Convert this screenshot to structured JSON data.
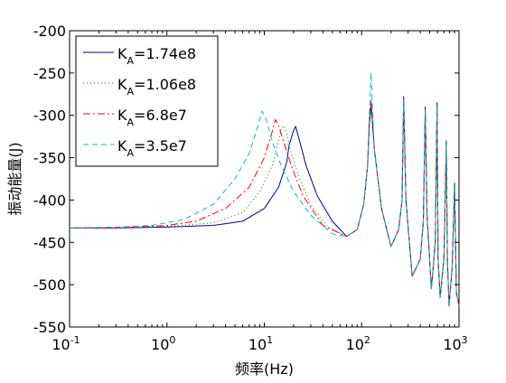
{
  "chart_data": {
    "type": "line",
    "title": "",
    "xlabel": "频率(Hz)",
    "ylabel": "振动能量(J)",
    "xscale": "log",
    "xlim": [
      0.1,
      1000
    ],
    "ylim": [
      -550,
      -200
    ],
    "x_ticks": [
      {
        "value": 0.1,
        "base": "10",
        "exp": "-1"
      },
      {
        "value": 1,
        "base": "10",
        "exp": "0"
      },
      {
        "value": 10,
        "base": "10",
        "exp": "1"
      },
      {
        "value": 100,
        "base": "10",
        "exp": "2"
      },
      {
        "value": 1000,
        "base": "10",
        "exp": "3"
      }
    ],
    "y_ticks": [
      -550,
      -500,
      -450,
      -400,
      -350,
      -300,
      -250,
      -200
    ],
    "grid": false,
    "legend_position": "top-left",
    "series": [
      {
        "name": "K_A=1.74e8",
        "label_main": "K",
        "label_sub": "A",
        "label_value": "=1.74e8",
        "color": "#00008b",
        "dash": "solid",
        "x": [
          0.1,
          0.3,
          1,
          3,
          6,
          10,
          14,
          16,
          17,
          18,
          20,
          21,
          23,
          27,
          35,
          50,
          70,
          90,
          105,
          115,
          120,
          125,
          135,
          160,
          200,
          240,
          260,
          270,
          285,
          330,
          400,
          430,
          450,
          470,
          520,
          570,
          595,
          610,
          640,
          700,
          740,
          760,
          790,
          850,
          900,
          940,
          1000
        ],
        "y": [
          -433,
          -433,
          -432,
          -430,
          -425,
          -410,
          -385,
          -365,
          -355,
          -335,
          -318,
          -313,
          -330,
          -360,
          -395,
          -425,
          -443,
          -435,
          -405,
          -360,
          -310,
          -288,
          -340,
          -410,
          -455,
          -435,
          -400,
          -278,
          -400,
          -490,
          -470,
          -425,
          -290,
          -420,
          -505,
          -450,
          -285,
          -470,
          -515,
          -470,
          -330,
          -470,
          -525,
          -480,
          -380,
          -510,
          -525
        ]
      },
      {
        "name": "K_A=1.06e8",
        "label_main": "K",
        "label_sub": "A",
        "label_value": "=1.06e8",
        "color": "#008000",
        "dash": "1 3",
        "x": [
          0.1,
          0.3,
          1,
          3,
          6,
          9,
          12,
          14,
          15,
          16,
          17,
          19,
          23,
          30,
          45,
          70,
          90,
          105,
          115,
          120,
          125,
          135,
          160,
          200,
          240,
          260,
          270,
          285,
          330,
          400,
          430,
          450,
          470,
          520,
          570,
          595,
          610,
          640,
          700,
          740,
          760,
          790,
          850,
          900,
          940,
          1000
        ],
        "y": [
          -433,
          -433,
          -431,
          -427,
          -415,
          -390,
          -360,
          -330,
          -315,
          -312,
          -322,
          -345,
          -375,
          -405,
          -432,
          -443,
          -435,
          -405,
          -360,
          -300,
          -288,
          -340,
          -410,
          -455,
          -435,
          -400,
          -280,
          -400,
          -490,
          -470,
          -425,
          -292,
          -420,
          -505,
          -450,
          -287,
          -470,
          -515,
          -470,
          -330,
          -470,
          -525,
          -480,
          -380,
          -510,
          -525
        ]
      },
      {
        "name": "K_A=6.8e7",
        "label_main": "K",
        "label_sub": "A",
        "label_value": "=6.8e7",
        "color": "#ff0000",
        "dash": "8 3 2 3",
        "x": [
          0.1,
          0.3,
          1,
          2,
          4,
          7,
          10,
          12,
          13,
          14,
          16,
          19,
          25,
          40,
          70,
          90,
          105,
          115,
          120,
          125,
          135,
          160,
          200,
          240,
          260,
          270,
          285,
          330,
          400,
          430,
          450,
          470,
          520,
          570,
          595,
          610,
          640,
          700,
          740,
          760,
          790,
          850,
          900,
          940,
          1000
        ],
        "y": [
          -433,
          -433,
          -430,
          -425,
          -410,
          -385,
          -350,
          -320,
          -305,
          -312,
          -333,
          -360,
          -395,
          -430,
          -443,
          -435,
          -405,
          -360,
          -300,
          -282,
          -340,
          -410,
          -455,
          -435,
          -400,
          -280,
          -400,
          -490,
          -470,
          -425,
          -292,
          -420,
          -505,
          -450,
          -287,
          -470,
          -515,
          -470,
          -335,
          -470,
          -525,
          -480,
          -385,
          -510,
          -525
        ]
      },
      {
        "name": "K_A=3.5e7",
        "label_main": "K",
        "label_sub": "A",
        "label_value": "=3.5e7",
        "color": "#00bfbf",
        "dash": "6 4",
        "x": [
          0.1,
          0.3,
          0.7,
          1.5,
          3,
          5,
          7,
          8.5,
          9.5,
          10.5,
          12,
          15,
          20,
          30,
          50,
          70,
          90,
          105,
          115,
          120,
          125,
          135,
          160,
          200,
          240,
          260,
          270,
          285,
          330,
          400,
          430,
          450,
          470,
          520,
          570,
          595,
          610,
          640,
          700,
          740,
          760,
          790,
          850,
          900,
          940,
          1000
        ],
        "y": [
          -433,
          -432,
          -430,
          -423,
          -405,
          -375,
          -345,
          -315,
          -295,
          -305,
          -330,
          -360,
          -390,
          -418,
          -440,
          -443,
          -435,
          -405,
          -360,
          -300,
          -250,
          -340,
          -410,
          -455,
          -435,
          -400,
          -282,
          -400,
          -490,
          -470,
          -425,
          -293,
          -420,
          -505,
          -450,
          -288,
          -470,
          -515,
          -470,
          -335,
          -470,
          -525,
          -480,
          -385,
          -510,
          -525
        ]
      }
    ]
  }
}
